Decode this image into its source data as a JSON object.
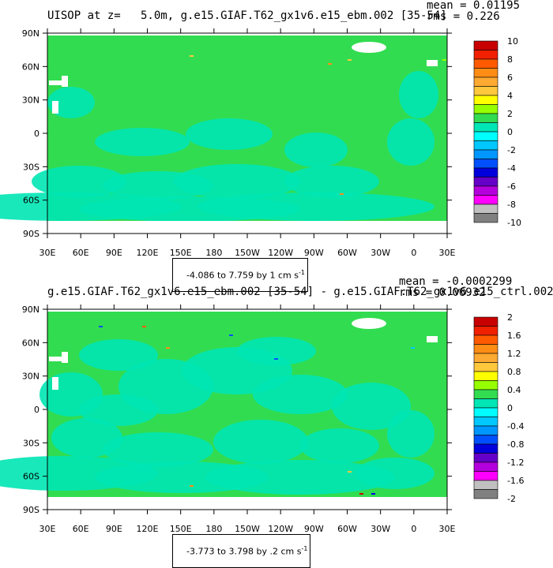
{
  "top_panel": {
    "title": "UISOP at z=   5.0m, g.e15.GIAF.T62_gx1v6.e15_ebm.002 [35-54]",
    "mean_text": "mean = 0.01195",
    "rms_text": "rms = 0.226",
    "range_text": "-4.086 to 7.759 by 1 cm s",
    "range_unit_sup": "-1",
    "colorbar_labels": [
      "10",
      "8",
      "6",
      "4",
      "2",
      "0",
      "-2",
      "-4",
      "-6",
      "-8",
      "-10"
    ],
    "colors": [
      "#c80000",
      "#f02000",
      "#ff5a00",
      "#ff8c14",
      "#ffaa32",
      "#ffc83c",
      "#ffff00",
      "#96ff00",
      "#32dc50",
      "#00e6b4",
      "#00ffff",
      "#00c8ff",
      "#0096ff",
      "#0050ff",
      "#0000dc",
      "#6400c8",
      "#b400dc",
      "#ff00ff",
      "#c0c0c0",
      "#808080"
    ]
  },
  "bottom_panel": {
    "title": "g.e15.GIAF.T62_gx1v6.e15_ebm.002 [35-54] - g.e15.GIAF.T62_gx1v6.e15_ctrl.002",
    "mean_text": "mean = -0.0002299",
    "rms_text": "rms = 0.06932",
    "range_text": "-3.773 to 3.798 by .2 cm s",
    "range_unit_sup": "-1",
    "colorbar_labels": [
      "2",
      "1.6",
      "1.2",
      "0.8",
      "0.4",
      "0",
      "-0.4",
      "-0.8",
      "-1.2",
      "-1.6",
      "-2"
    ],
    "colors": [
      "#c80000",
      "#f02000",
      "#ff5a00",
      "#ff8c14",
      "#ffaa32",
      "#ffc83c",
      "#ffff00",
      "#96ff00",
      "#32dc50",
      "#00e6b4",
      "#00ffff",
      "#00c8ff",
      "#0096ff",
      "#0050ff",
      "#0000dc",
      "#6400c8",
      "#b400dc",
      "#ff00ff",
      "#c0c0c0",
      "#808080"
    ]
  },
  "lat_labels": [
    "90N",
    "60N",
    "30N",
    "0",
    "30S",
    "60S",
    "90S"
  ],
  "lon_labels": [
    "30E",
    "60E",
    "90E",
    "120E",
    "150E",
    "180",
    "150W",
    "120W",
    "90W",
    "60W",
    "30W",
    "0",
    "30E"
  ],
  "map_colors": {
    "ocean_main": "#32dc50",
    "ocean_light": "#00e6b4",
    "land": "#ffffff",
    "polar_band": "#ffffff"
  }
}
